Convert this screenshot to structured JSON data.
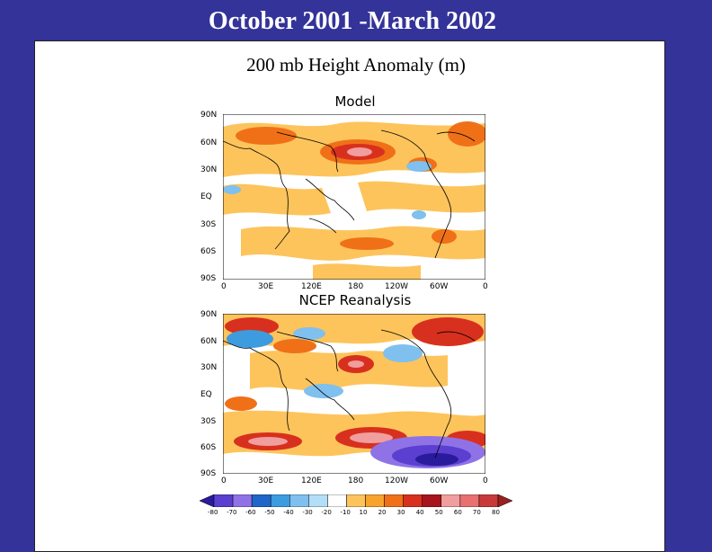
{
  "slide_title": "October 2001 -March 2002",
  "figure_title": "200 mb Height Anomaly (m)",
  "chart_data": [
    {
      "type": "heatmap",
      "title": "Model",
      "x_tick_labels": [
        "0",
        "30E",
        "120E",
        "180",
        "120W",
        "60W",
        "0"
      ],
      "y_tick_labels": [
        "90N",
        "60N",
        "30N",
        "EQ",
        "30S",
        "60S",
        "90S"
      ],
      "xlim_deg": [
        0,
        360
      ],
      "ylim_deg": [
        -90,
        90
      ]
    },
    {
      "type": "heatmap",
      "title": "NCEP Reanalysis",
      "x_tick_labels": [
        "0",
        "30E",
        "120E",
        "180",
        "120W",
        "60W",
        "0"
      ],
      "y_tick_labels": [
        "90N",
        "60N",
        "30N",
        "EQ",
        "30S",
        "60S",
        "90S"
      ],
      "xlim_deg": [
        0,
        360
      ],
      "ylim_deg": [
        -90,
        90
      ]
    }
  ],
  "colorbar": {
    "levels": [
      "-80",
      "-70",
      "-60",
      "-50",
      "-40",
      "-30",
      "-20",
      "-10",
      "10",
      "20",
      "30",
      "40",
      "50",
      "60",
      "70",
      "80"
    ],
    "colors": [
      "#2a1a9c",
      "#5a3fd0",
      "#8f73e6",
      "#1f66c8",
      "#3d9be0",
      "#7fc0ee",
      "#b3def7",
      "#ffffff",
      "#fdc45c",
      "#f7a32c",
      "#f07018",
      "#d8301e",
      "#a8151c",
      "#f09e9e",
      "#e87070",
      "#c83a3a",
      "#9a1f1f"
    ]
  }
}
